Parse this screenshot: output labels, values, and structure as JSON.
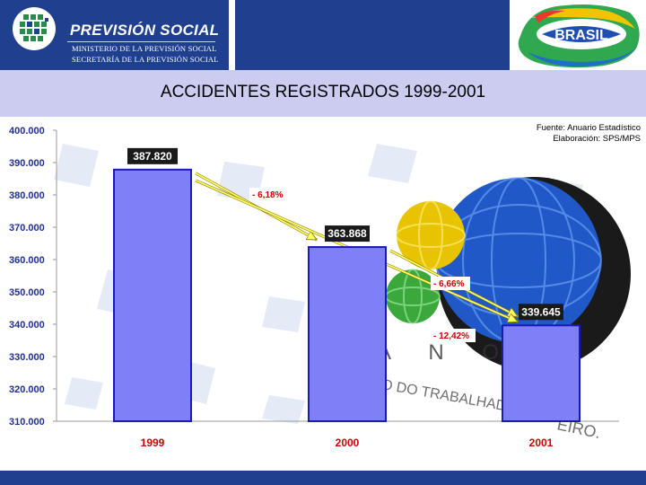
{
  "header": {
    "org_title": "PREVISIÓN SOCIAL",
    "ministry_line1": "MINISTERIO DE LA PREVISIÓN SOCIAL",
    "ministry_line2": "SECRETARÍA DE LA PREVISIÓN SOCIAL",
    "brand_logo_text": "BRASIL"
  },
  "source_note": {
    "line1": "Fuente: Anuario Estadístico",
    "line2": "Elaboración: SPS/MPS"
  },
  "colors": {
    "header_blue": "#1f3f8f",
    "title_band": "#ccccf0",
    "bar_fill": "#7f7ff7",
    "bar_stroke": "#1a1ab8",
    "axis_label": "#1f2f8f",
    "category_label": "#cc0000",
    "change_label": "#cc0000",
    "arrow": "#ffff66"
  },
  "chart_data": {
    "type": "bar",
    "title": "ACCIDENTES REGISTRADOS 1999-2001",
    "categories": [
      "1999",
      "2000",
      "2001"
    ],
    "values": [
      387820,
      363868,
      339645
    ],
    "value_labels": [
      "387.820",
      "363.868",
      "339.645"
    ],
    "ylim": [
      310000,
      400000
    ],
    "yticks": [
      310000,
      320000,
      330000,
      340000,
      350000,
      360000,
      370000,
      380000,
      390000,
      400000
    ],
    "ytick_labels": [
      "310.000",
      "320.000",
      "330.000",
      "340.000",
      "350.000",
      "360.000",
      "370.000",
      "380.000",
      "390.000",
      "400.000"
    ],
    "grid": false,
    "changes": [
      {
        "label": "- 6,18%",
        "from": "1999",
        "to": "2000"
      },
      {
        "label": "- 6,66%",
        "from": "2000",
        "to": "2001"
      },
      {
        "label": "- 12,42%",
        "from": "1999",
        "to": "2001"
      }
    ]
  }
}
